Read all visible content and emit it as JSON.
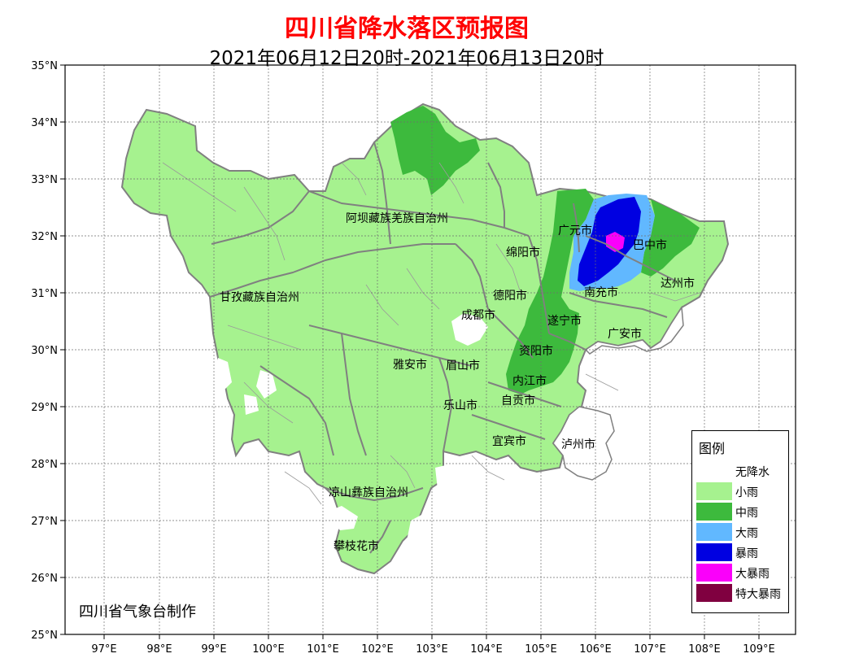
{
  "title": "四川省降水落区预报图",
  "subtitle": "2021年06月12日20时-2021年06月13日20时",
  "credit": "四川省气象台制作",
  "axes": {
    "lat_ticks": [
      "35°N",
      "34°N",
      "33°N",
      "32°N",
      "31°N",
      "30°N",
      "29°N",
      "28°N",
      "27°N",
      "26°N",
      "25°N"
    ],
    "lon_ticks": [
      "97°E",
      "98°E",
      "99°E",
      "100°E",
      "101°E",
      "102°E",
      "103°E",
      "104°E",
      "105°E",
      "106°E",
      "107°E",
      "108°E",
      "109°E"
    ]
  },
  "legend": {
    "title": "图例",
    "items": [
      {
        "label": "无降水",
        "color": "#ffffff"
      },
      {
        "label": "小雨",
        "color": "#a6f28f"
      },
      {
        "label": "中雨",
        "color": "#3dba3d"
      },
      {
        "label": "大雨",
        "color": "#61b8ff"
      },
      {
        "label": "暴雨",
        "color": "#0000e1"
      },
      {
        "label": "大暴雨",
        "color": "#fa00fa"
      },
      {
        "label": "特大暴雨",
        "color": "#800040"
      }
    ]
  },
  "regions": [
    "阿坝藏族羌族自治州",
    "甘孜藏族自治州",
    "广元市",
    "巴中市",
    "绵阳市",
    "达州市",
    "德阳市",
    "南充市",
    "成都市",
    "遂宁市",
    "广安市",
    "资阳市",
    "雅安市",
    "眉山市",
    "内江市",
    "乐山市",
    "自贡市",
    "宜宾市",
    "泸州市",
    "凉山彝族自治州",
    "攀枝花市"
  ]
}
